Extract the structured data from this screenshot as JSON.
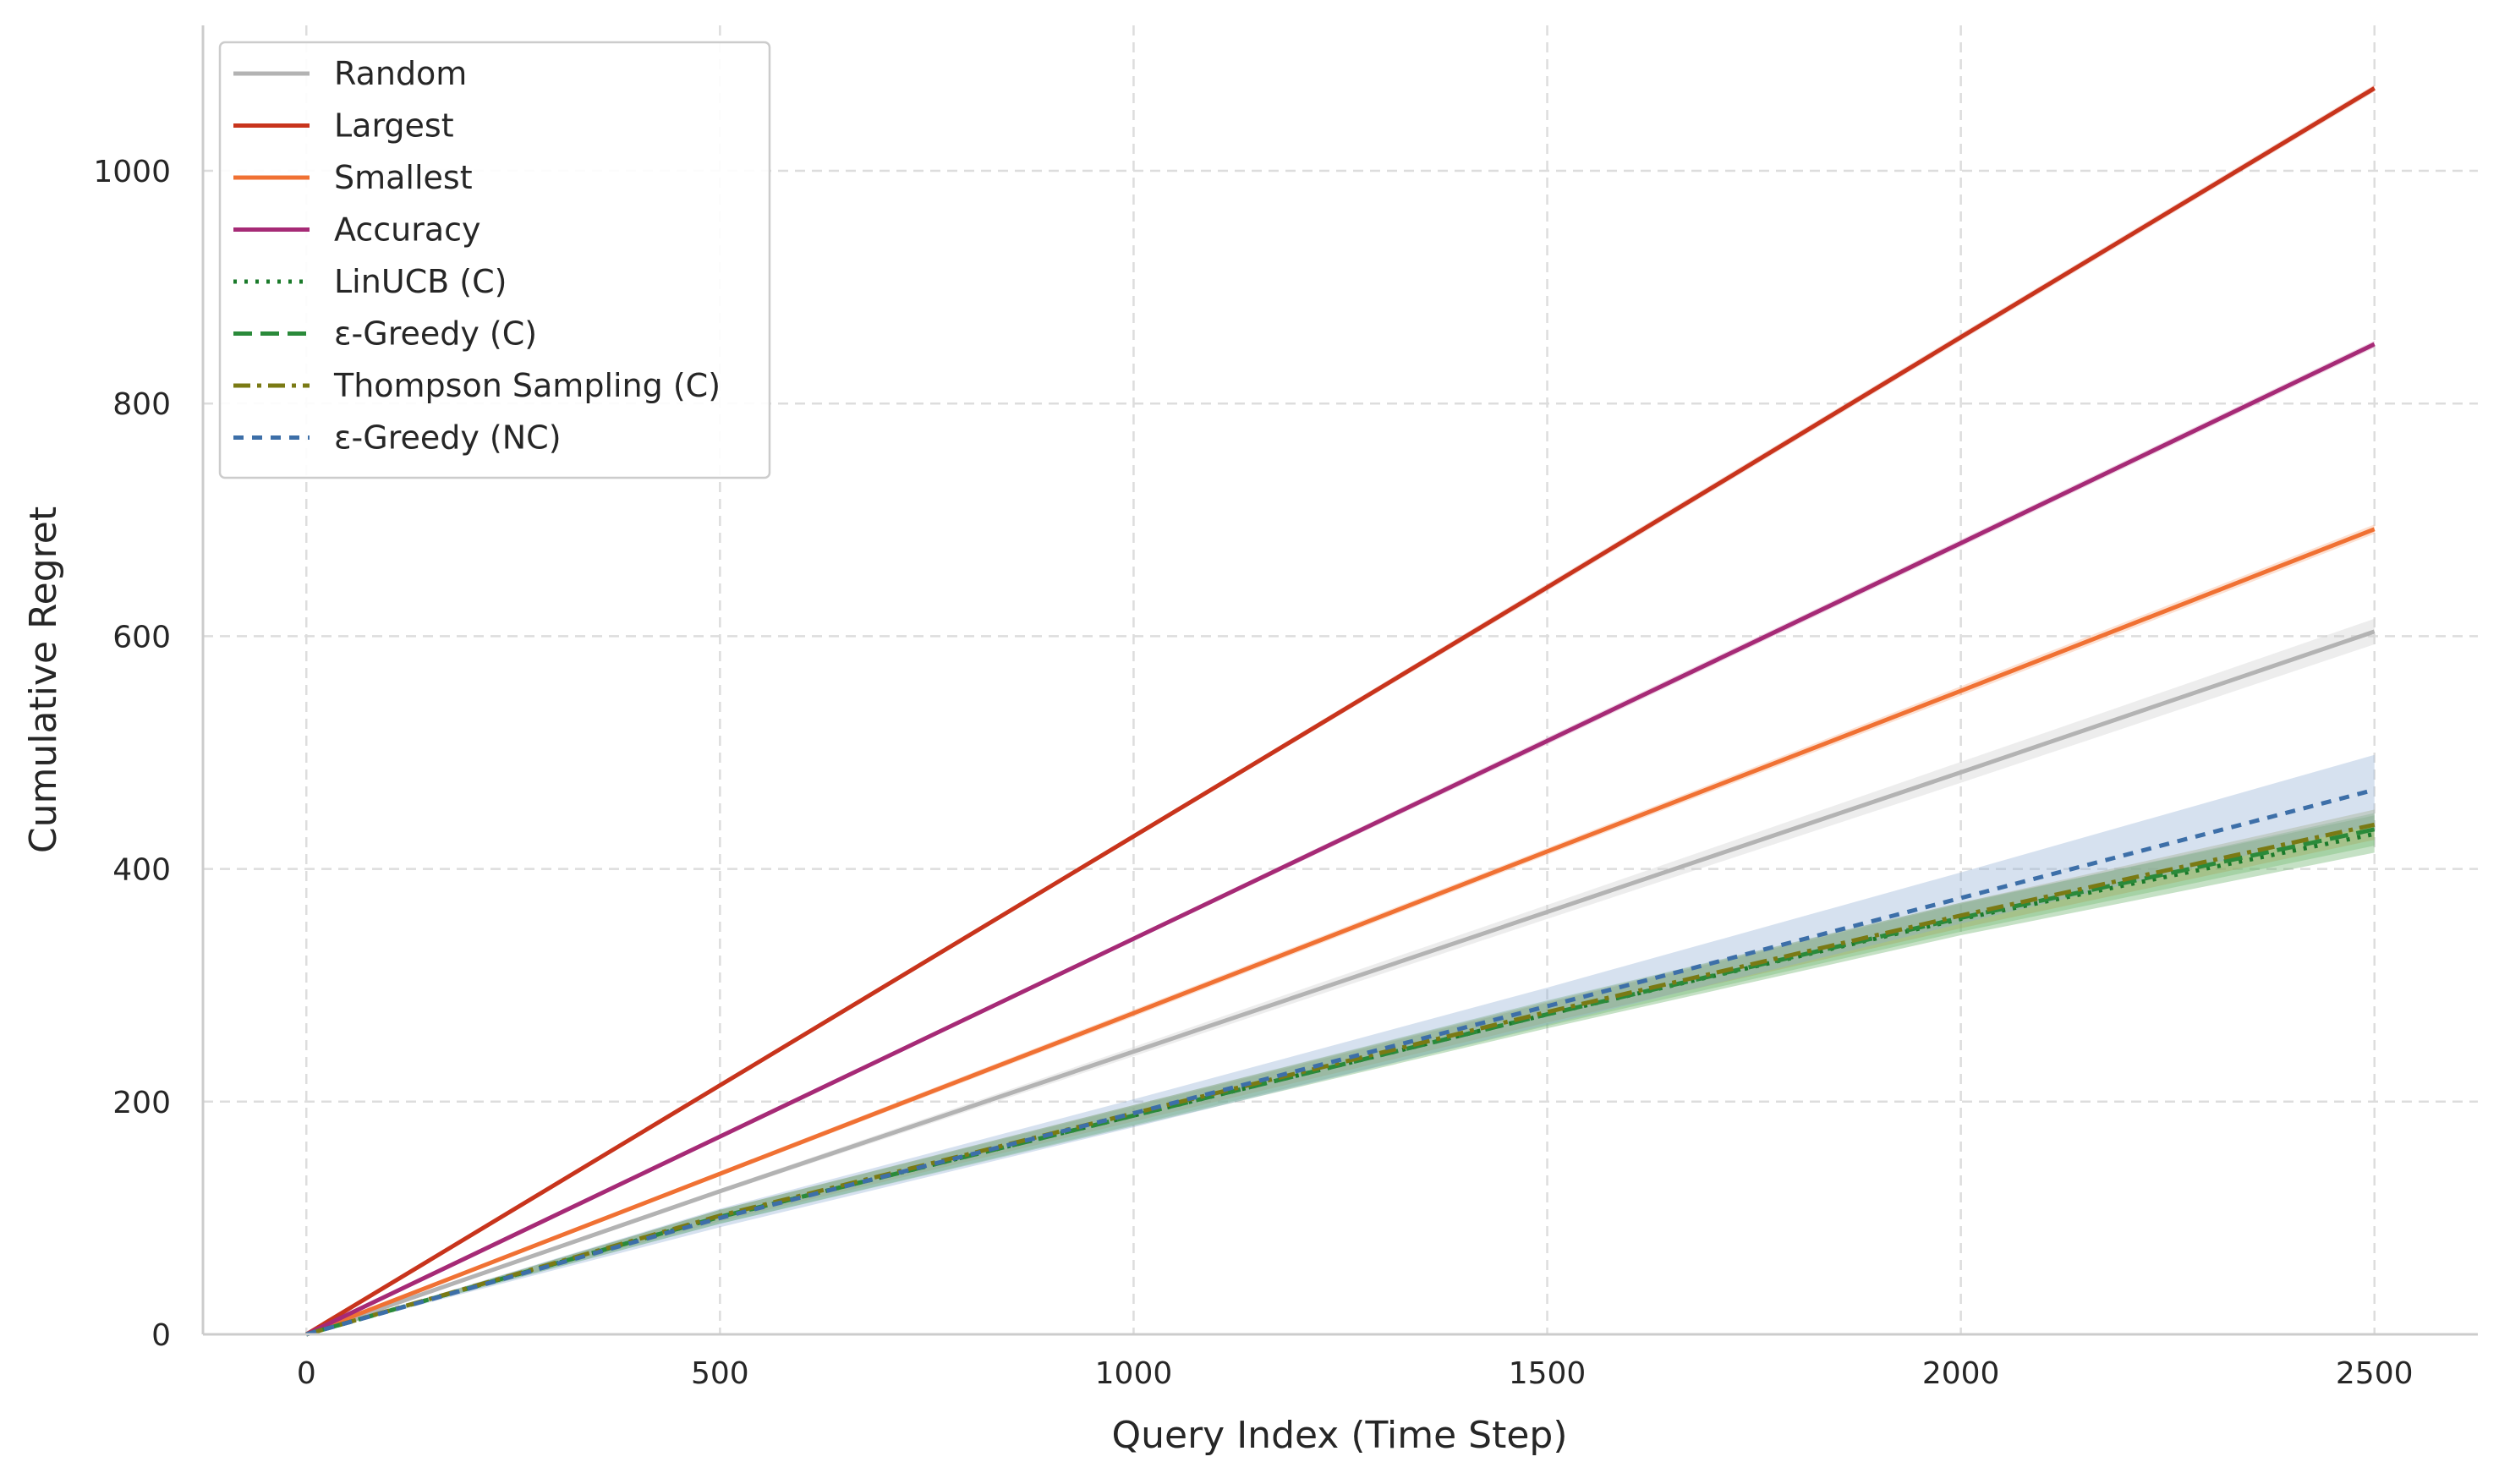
{
  "chart_data": {
    "type": "line",
    "title": "",
    "xlabel": "Query Index (Time Step)",
    "ylabel": "Cumulative Regret",
    "xlim": [
      -125,
      2625
    ],
    "ylim": [
      0,
      1125
    ],
    "xticks": [
      0,
      500,
      1000,
      1500,
      2000,
      2500
    ],
    "yticks": [
      0,
      200,
      400,
      600,
      800,
      1000
    ],
    "grid": true,
    "legend_position": "top-left",
    "series": [
      {
        "name": "Random",
        "color": "#b3b3b3",
        "style": "solid",
        "band_color": "#cccccc",
        "x": [
          0,
          500,
          1000,
          1500,
          2000,
          2500
        ],
        "y": [
          0,
          123,
          243,
          363,
          483,
          604
        ],
        "band": [
          0,
          2,
          4,
          6,
          9,
          11
        ]
      },
      {
        "name": "Largest",
        "color": "#c8341c",
        "style": "solid",
        "band_color": "#e58a7a",
        "x": [
          0,
          500,
          1000,
          1500,
          2000,
          2500
        ],
        "y": [
          0,
          214,
          428,
          642,
          857,
          1071
        ],
        "band": [
          0,
          2,
          2,
          3,
          3,
          3
        ]
      },
      {
        "name": "Smallest",
        "color": "#f07133",
        "style": "solid",
        "band_color": "#f5a67f",
        "x": [
          0,
          500,
          1000,
          1500,
          2000,
          2500
        ],
        "y": [
          0,
          138,
          276,
          415,
          553,
          692
        ],
        "band": [
          0,
          2,
          3,
          3,
          4,
          4
        ]
      },
      {
        "name": "Accuracy",
        "color": "#a62a76",
        "style": "solid",
        "band_color": "#d48ab8",
        "x": [
          0,
          500,
          1000,
          1500,
          2000,
          2500
        ],
        "y": [
          0,
          170,
          340,
          510,
          680,
          851
        ],
        "band": [
          0,
          2,
          2,
          3,
          3,
          3
        ]
      },
      {
        "name": "LinUCB (C)",
        "color": "#1a7a2a",
        "style": "dotted",
        "band_color": "#5aaa5a",
        "x": [
          0,
          500,
          1000,
          1500,
          2000,
          2500
        ],
        "y": [
          0,
          101,
          188,
          275,
          357,
          430
        ],
        "band": [
          0,
          6,
          9,
          12,
          14,
          16
        ]
      },
      {
        "name": "ε-Greedy (C)",
        "color": "#2a8a3a",
        "style": "dashed",
        "band_color": "#6ab86a",
        "x": [
          0,
          500,
          1000,
          1500,
          2000,
          2500
        ],
        "y": [
          0,
          101,
          188,
          275,
          358,
          434
        ],
        "band": [
          0,
          6,
          8,
          10,
          12,
          14
        ]
      },
      {
        "name": "Thompson Sampling (C)",
        "color": "#7a7a14",
        "style": "dashdot",
        "band_color": "#a6a65a",
        "x": [
          0,
          500,
          1000,
          1500,
          2000,
          2500
        ],
        "y": [
          0,
          102,
          190,
          277,
          360,
          438
        ],
        "band": [
          0,
          5,
          7,
          9,
          11,
          13
        ]
      },
      {
        "name": "ε-Greedy (NC)",
        "color": "#3d6fa8",
        "style": "shortdash",
        "band_color": "#8aa8d0",
        "x": [
          0,
          500,
          1000,
          1500,
          2000,
          2500
        ],
        "y": [
          0,
          100,
          190,
          282,
          375,
          468
        ],
        "band": [
          0,
          8,
          12,
          16,
          22,
          30
        ]
      }
    ]
  }
}
